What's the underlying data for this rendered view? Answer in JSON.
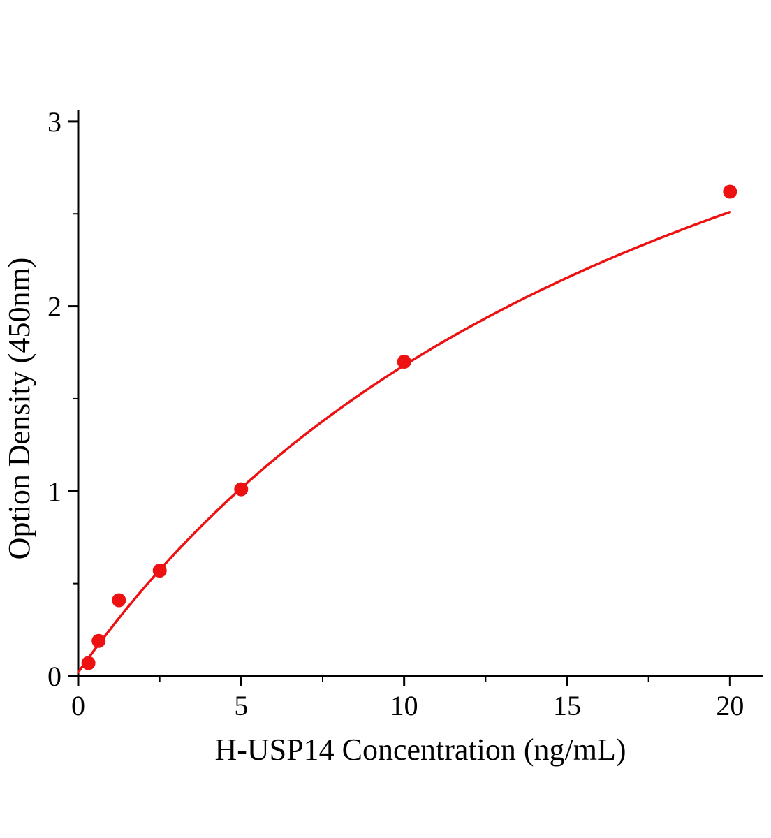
{
  "chart_data": {
    "type": "scatter",
    "title": "",
    "xlabel": "H-USP14 Concentration (ng/mL)",
    "ylabel": "Option Density (450nm)",
    "xlim": [
      0,
      21
    ],
    "ylim": [
      0,
      3.06
    ],
    "x_ticks": [
      0,
      5,
      10,
      15,
      20
    ],
    "y_ticks": [
      0,
      1,
      2,
      3
    ],
    "grid": false,
    "legend": false,
    "axis_color": "#000000",
    "series": [
      {
        "color": "#ee1111",
        "marker": "circle",
        "marker_radius": 10,
        "points": [
          {
            "x": 0.3125,
            "y": 0.07
          },
          {
            "x": 0.625,
            "y": 0.19
          },
          {
            "x": 1.25,
            "y": 0.41
          },
          {
            "x": 2.5,
            "y": 0.57
          },
          {
            "x": 5,
            "y": 1.01
          },
          {
            "x": 10,
            "y": 1.7
          },
          {
            "x": 20,
            "y": 2.62
          }
        ],
        "fit_curve": {
          "model": "4pl",
          "a": 0.02,
          "b": 1.0,
          "c": 20.0,
          "d": 5.0,
          "x_start": 0,
          "x_end": 20
        }
      }
    ]
  }
}
